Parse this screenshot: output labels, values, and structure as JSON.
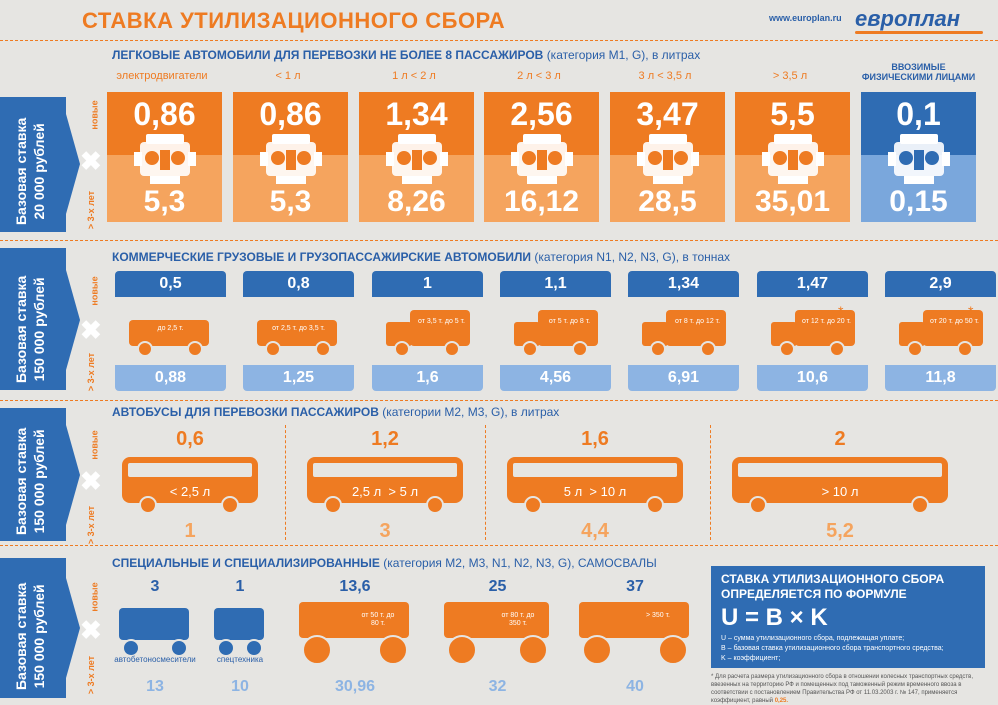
{
  "header": {
    "title": "СТАВКА УТИЛИЗАЦИОННОГО СБОРА",
    "site": "www.europlan.ru",
    "logo": "европлан"
  },
  "side": {
    "new": "новые",
    "old": "> 3-х лет"
  },
  "bands": [
    {
      "line1": "Базовая ставка",
      "line2": "20 000 рублей"
    },
    {
      "line1": "Базовая ставка",
      "line2": "150 000 рублей"
    },
    {
      "line1": "Базовая ставка",
      "line2": "150 000 рублей"
    },
    {
      "line1": "Базовая ставка",
      "line2": "150 000 рублей"
    }
  ],
  "section1": {
    "title": "ЛЕГКОВЫЕ  АВТОМОБИЛИ ДЛЯ ПЕРЕВОЗКИ НЕ БОЛЕЕ 8 ПАССАЖИРОВ",
    "title_rest": "(категория M1, G), в литрах",
    "cards": [
      {
        "label": "электродвигатели",
        "new": "0,86",
        "old": "5,3"
      },
      {
        "label": "< 1 л",
        "new": "0,86",
        "old": "5,3"
      },
      {
        "label": "1 л < 2 л",
        "new": "1,34",
        "old": "8,26"
      },
      {
        "label": "2 л < 3 л",
        "new": "2,56",
        "old": "16,12"
      },
      {
        "label": "3 л < 3,5 л",
        "new": "3,47",
        "old": "28,5"
      },
      {
        "label": "> 3,5 л",
        "new": "5,5",
        "old": "35,01"
      },
      {
        "label": "ввозимые физическими лицами",
        "new": "0,1",
        "old": "0,15"
      }
    ]
  },
  "section2": {
    "title": "КОММЕРЧЕСКИЕ ГРУЗОВЫЕ И ГРУЗОПАССАЖИРСКИЕ АВТОМОБИЛИ",
    "title_rest": "(категория N1, N2, N3, G), в тоннах",
    "items": [
      {
        "new": "0,5",
        "old": "0,88",
        "cap": "до 2,5 т."
      },
      {
        "new": "0,8",
        "old": "1,25",
        "cap": "от 2,5 т. до 3,5 т."
      },
      {
        "new": "1",
        "old": "1,6",
        "cap": "от 3,5 т. до 5 т."
      },
      {
        "new": "1,1",
        "old": "4,56",
        "cap": "от 5 т. до 8 т."
      },
      {
        "new": "1,34",
        "old": "6,91",
        "cap": "от 8 т. до 12 т."
      },
      {
        "new": "1,47",
        "old": "10,6",
        "cap": "от 12 т. до 20 т."
      },
      {
        "new": "2,9",
        "old": "11,8",
        "cap": "от 20 т. до 50 т."
      }
    ]
  },
  "section3": {
    "title": "АВТОБУСЫ ДЛЯ ПЕРЕВОЗКИ ПАССАЖИРОВ",
    "title_rest": "(категории M2, M3, G), в литрах",
    "items": [
      {
        "new": "0,6",
        "old": "1",
        "cap": "< 2,5 л"
      },
      {
        "new": "1,2",
        "old": "3",
        "cap": "2,5 л  > 5 л"
      },
      {
        "new": "1,6",
        "old": "4,4",
        "cap": "5 л  > 10 л"
      },
      {
        "new": "2",
        "old": "5,2",
        "cap": "> 10 л"
      }
    ]
  },
  "section4": {
    "title": "СПЕЦИАЛЬНЫЕ И СПЕЦИАЛИЗИРОВАННЫЕ",
    "title_rest": "(категория M2, M3, N1, N2, N3, G), САМОСВАЛЫ",
    "items": [
      {
        "new": "3",
        "old": "13",
        "cap": "автобетоносмесители"
      },
      {
        "new": "1",
        "old": "10",
        "cap": "спецтехника"
      },
      {
        "new": "13,6",
        "old": "30,96",
        "cap": "от 50 т. до 80 т."
      },
      {
        "new": "25",
        "old": "32",
        "cap": "от 80 т. до 350 т."
      },
      {
        "new": "37",
        "old": "40",
        "cap": "> 350 т."
      }
    ]
  },
  "formula": {
    "line1": "СТАВКА УТИЛИЗАЦИОННОГО СБОРА",
    "line2": "ОПРЕДЕЛЯЕТСЯ ПО ФОРМУЛЕ",
    "eq": "U = B × K",
    "d1": "U – сумма утилизационного сбора, подлежащая уплате;",
    "d2": "B – базовая ставка утилизационного сбора транспортного средства;",
    "d3": "K – коэффициент;"
  },
  "note": {
    "text": "* Для расчета размера утилизационного сбора в отношении колесных транспортных средств, ввезенных на территорию РФ и помещенных под таможенный режим временного ввоза в соответствии с постановлением Правительства РФ от 11.03.2003 г. № 147, применяется коэффициент, равный",
    "value": "0,25."
  },
  "colors": {
    "orange": "#ee7b22",
    "blue": "#2f6cb3",
    "light_orange": "#f5a45e",
    "light_blue": "#8db4e3"
  }
}
